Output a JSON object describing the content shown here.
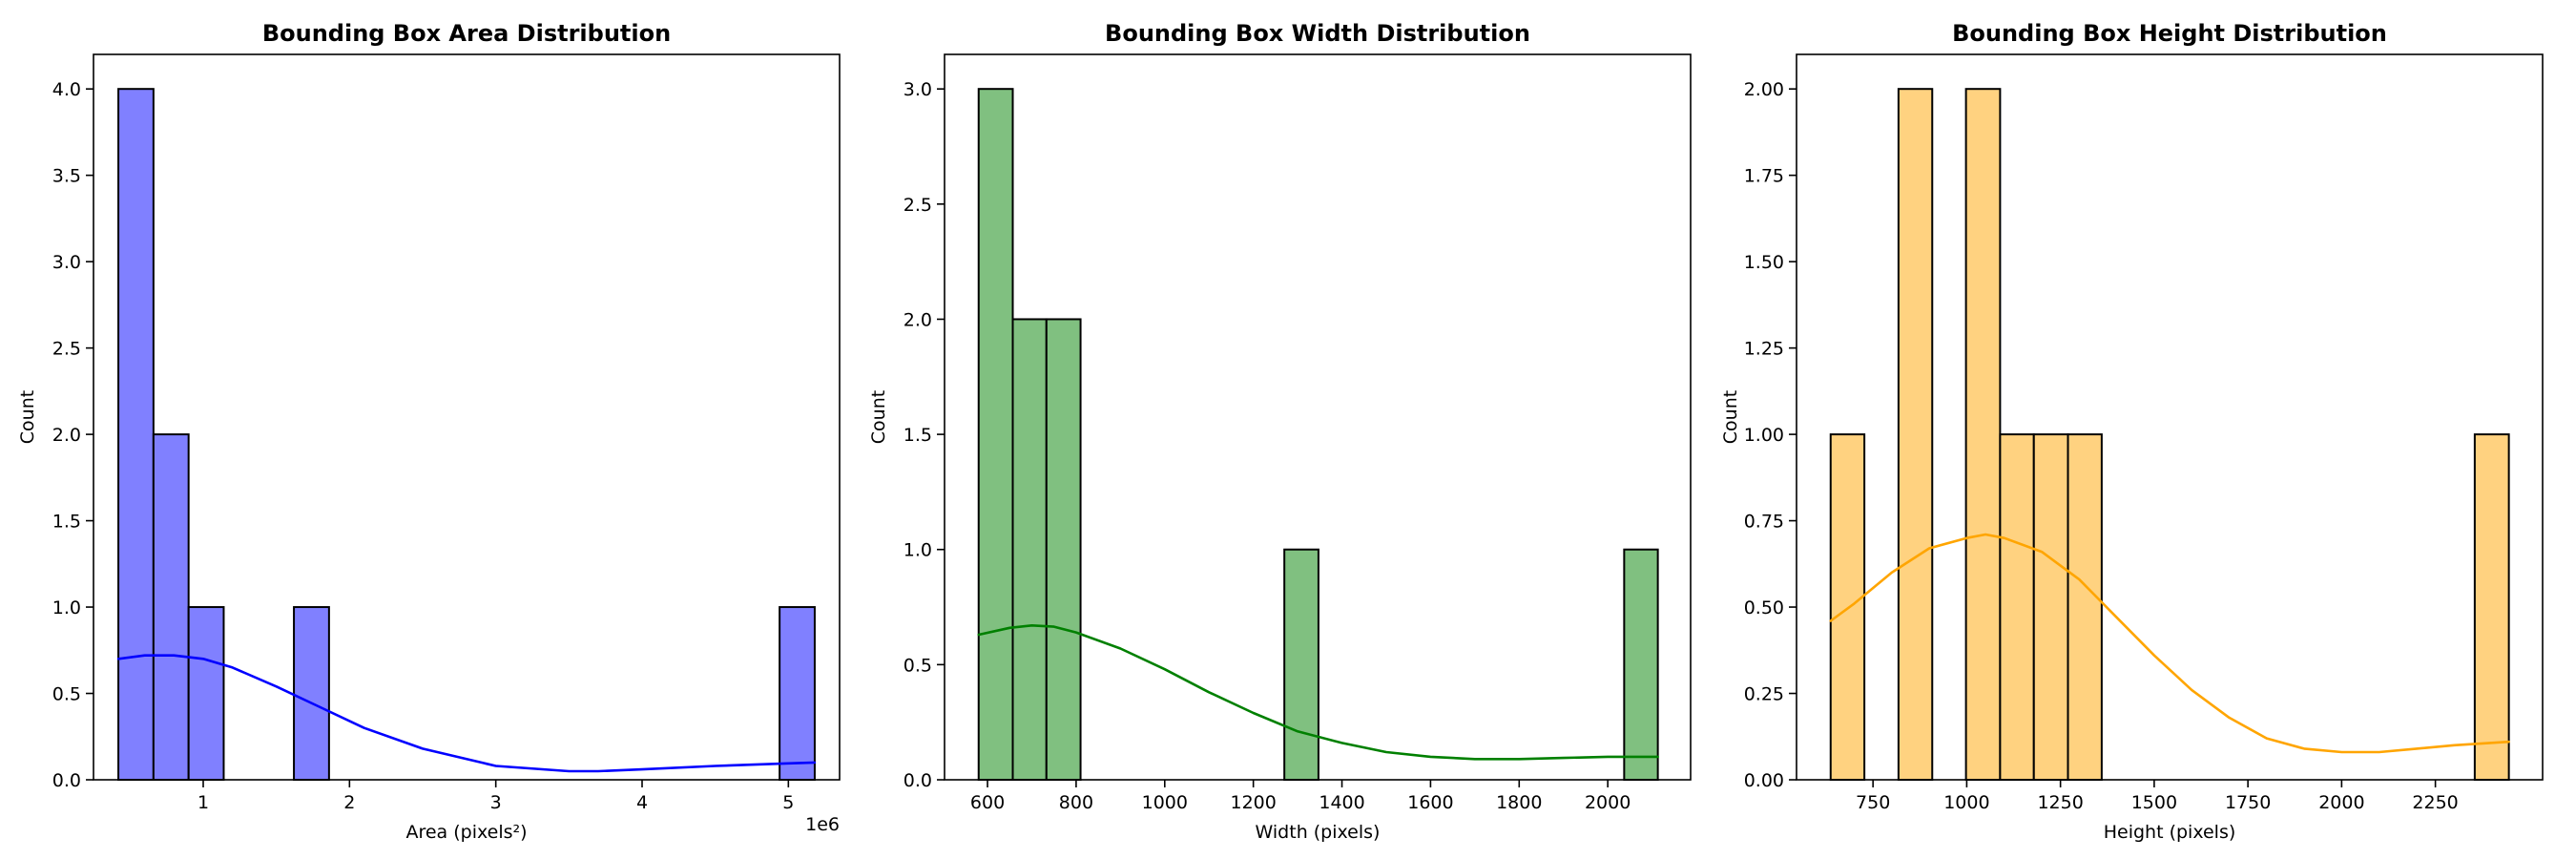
{
  "chart_data": [
    {
      "type": "histogram",
      "title": "Bounding Box Area Distribution",
      "xlabel": "Area (pixels²)",
      "ylabel": "Count",
      "x_offset_text": "1e6",
      "xlim": [
        0.25,
        5.35
      ],
      "ylim": [
        0,
        4.2
      ],
      "xticks": [
        1,
        2,
        3,
        4,
        5
      ],
      "xtick_labels": [
        "1",
        "2",
        "3",
        "4",
        "5"
      ],
      "yticks": [
        0,
        0.5,
        1,
        1.5,
        2,
        2.5,
        3,
        3.5,
        4
      ],
      "ytick_labels": [
        "0.0",
        "0.5",
        "1.0",
        "1.5",
        "2.0",
        "2.5",
        "3.0",
        "3.5",
        "4.0"
      ],
      "bins": [
        {
          "x0": 0.42,
          "x1": 0.66,
          "count": 4
        },
        {
          "x0": 0.66,
          "x1": 0.9,
          "count": 2
        },
        {
          "x0": 0.9,
          "x1": 1.14,
          "count": 1
        },
        {
          "x0": 1.62,
          "x1": 1.86,
          "count": 1
        },
        {
          "x0": 4.94,
          "x1": 5.18,
          "count": 1
        }
      ],
      "kde": {
        "x": [
          0.42,
          0.6,
          0.8,
          1.0,
          1.2,
          1.5,
          1.8,
          2.1,
          2.5,
          3.0,
          3.5,
          3.7,
          4.0,
          4.5,
          5.0,
          5.18
        ],
        "y": [
          0.7,
          0.72,
          0.72,
          0.7,
          0.65,
          0.54,
          0.42,
          0.3,
          0.18,
          0.08,
          0.05,
          0.05,
          0.06,
          0.08,
          0.095,
          0.1
        ]
      },
      "bar_color": "#8080ff",
      "line_color": "#0000ff"
    },
    {
      "type": "histogram",
      "title": "Bounding Box Width Distribution",
      "xlabel": "Width (pixels)",
      "ylabel": "Count",
      "xlim": [
        503,
        2187
      ],
      "ylim": [
        0,
        3.15
      ],
      "xticks": [
        600,
        800,
        1000,
        1200,
        1400,
        1600,
        1800,
        2000
      ],
      "xtick_labels": [
        "600",
        "800",
        "1000",
        "1200",
        "1400",
        "1600",
        "1800",
        "2000"
      ],
      "yticks": [
        0,
        0.5,
        1,
        1.5,
        2,
        2.5,
        3
      ],
      "ytick_labels": [
        "0.0",
        "0.5",
        "1.0",
        "1.5",
        "2.0",
        "2.5",
        "3.0"
      ],
      "bins": [
        {
          "x0": 580,
          "x1": 657,
          "count": 3
        },
        {
          "x0": 657,
          "x1": 733,
          "count": 2
        },
        {
          "x0": 733,
          "x1": 810,
          "count": 2
        },
        {
          "x0": 1270,
          "x1": 1347,
          "count": 1
        },
        {
          "x0": 2037,
          "x1": 2113,
          "count": 1
        }
      ],
      "kde": {
        "x": [
          580,
          650,
          700,
          750,
          800,
          900,
          1000,
          1100,
          1200,
          1300,
          1400,
          1500,
          1600,
          1700,
          1800,
          1900,
          2000,
          2113
        ],
        "y": [
          0.63,
          0.66,
          0.67,
          0.665,
          0.64,
          0.57,
          0.48,
          0.38,
          0.29,
          0.21,
          0.16,
          0.12,
          0.1,
          0.09,
          0.09,
          0.095,
          0.1,
          0.1
        ]
      },
      "bar_color": "#80c080",
      "line_color": "#008000"
    },
    {
      "type": "histogram",
      "title": "Bounding Box Height Distribution",
      "xlabel": "Height (pixels)",
      "ylabel": "Count",
      "xlim": [
        546,
        2536
      ],
      "ylim": [
        0,
        2.1
      ],
      "xticks": [
        750,
        1000,
        1250,
        1500,
        1750,
        2000,
        2250
      ],
      "xtick_labels": [
        "750",
        "1000",
        "1250",
        "1500",
        "1750",
        "2000",
        "2250"
      ],
      "yticks": [
        0,
        0.25,
        0.5,
        0.75,
        1,
        1.25,
        1.5,
        1.75,
        2
      ],
      "ytick_labels": [
        "0.00",
        "0.25",
        "0.50",
        "0.75",
        "1.00",
        "1.25",
        "1.50",
        "1.75",
        "2.00"
      ],
      "bins": [
        {
          "x0": 637,
          "x1": 727,
          "count": 1
        },
        {
          "x0": 818,
          "x1": 908,
          "count": 2
        },
        {
          "x0": 998,
          "x1": 1089,
          "count": 2
        },
        {
          "x0": 1089,
          "x1": 1179,
          "count": 1
        },
        {
          "x0": 1179,
          "x1": 1270,
          "count": 1
        },
        {
          "x0": 1270,
          "x1": 1360,
          "count": 1
        },
        {
          "x0": 2355,
          "x1": 2446,
          "count": 1
        }
      ],
      "kde": {
        "x": [
          637,
          700,
          800,
          900,
          1000,
          1050,
          1100,
          1200,
          1300,
          1400,
          1500,
          1600,
          1700,
          1800,
          1900,
          2000,
          2100,
          2200,
          2300,
          2446
        ],
        "y": [
          0.46,
          0.51,
          0.6,
          0.67,
          0.7,
          0.71,
          0.7,
          0.66,
          0.58,
          0.47,
          0.36,
          0.26,
          0.18,
          0.12,
          0.09,
          0.08,
          0.08,
          0.09,
          0.1,
          0.11
        ]
      },
      "bar_color": "#ffd280",
      "line_color": "#ffa500"
    }
  ]
}
